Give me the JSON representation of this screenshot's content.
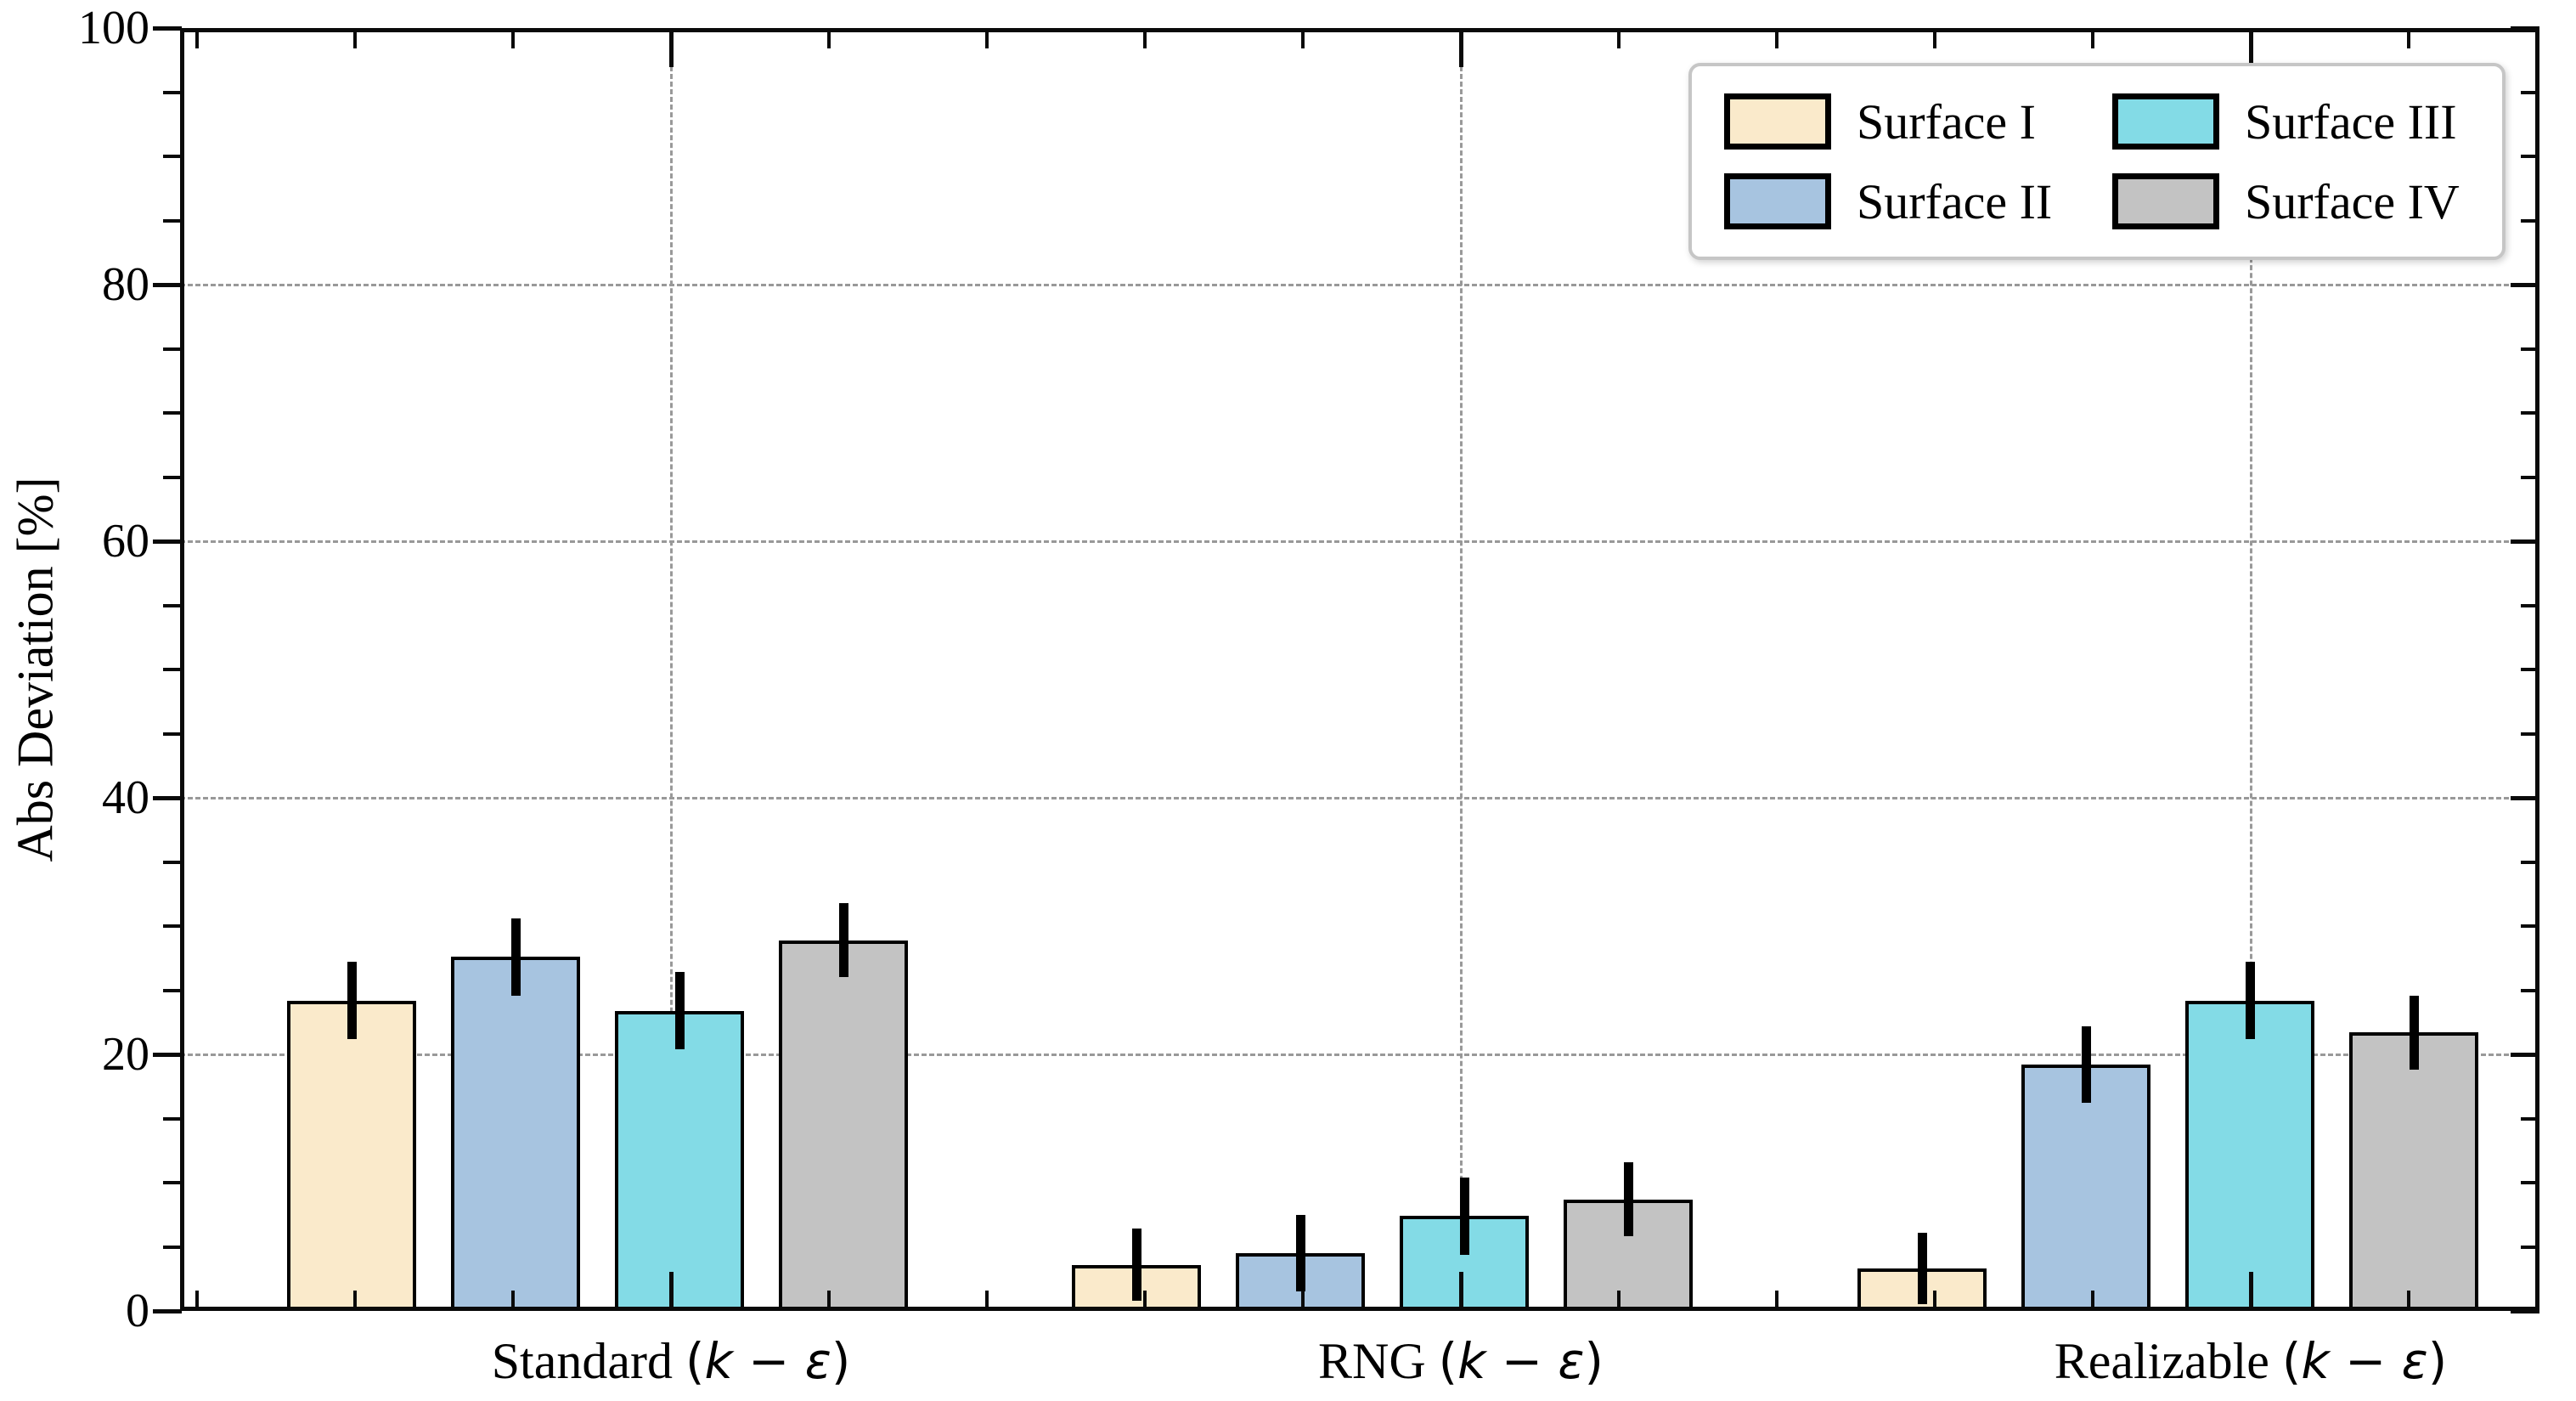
{
  "chart_data": {
    "type": "bar",
    "title": "",
    "ylabel": "Abs Deviation [%]",
    "ylim": [
      0,
      100
    ],
    "ytick_labels": [
      "0",
      "20",
      "40",
      "60",
      "80",
      "100"
    ],
    "ytick_values": [
      0,
      20,
      40,
      60,
      80,
      100
    ],
    "ytick_minor_step": 5,
    "grid": {
      "horizontal": "dashed at 20,40,60,80",
      "vertical": "dashed at category centers",
      "color": "#999999"
    },
    "categories": [
      {
        "prefix": "Standard ",
        "math": "(k − ε)"
      },
      {
        "prefix": "RNG ",
        "math": "(k − ε)"
      },
      {
        "prefix": "Realizable ",
        "math": "(k − ε)"
      }
    ],
    "series": [
      {
        "name": "Surface I",
        "color": "#FAEACB",
        "values": [
          24.2,
          3.6,
          3.3
        ],
        "errors": [
          3.0,
          2.8,
          2.8
        ]
      },
      {
        "name": "Surface II",
        "color": "#A7C4E0",
        "values": [
          27.6,
          4.5,
          19.2
        ],
        "errors": [
          3.0,
          3.0,
          3.0
        ]
      },
      {
        "name": "Surface III",
        "color": "#83DBE6",
        "values": [
          23.4,
          7.4,
          24.2
        ],
        "errors": [
          3.0,
          3.0,
          3.0
        ]
      },
      {
        "name": "Surface IV",
        "color": "#C3C3C3",
        "values": [
          28.9,
          8.7,
          21.7
        ],
        "errors": [
          2.9,
          2.9,
          2.9
        ]
      }
    ],
    "legend": {
      "position": "upper right",
      "ncol": 2,
      "entries": [
        "Surface I",
        "Surface II",
        "Surface III",
        "Surface IV"
      ]
    },
    "bar_edge_color": "#000000",
    "error_bar_color": "#000000",
    "error_bar_caps": false
  }
}
